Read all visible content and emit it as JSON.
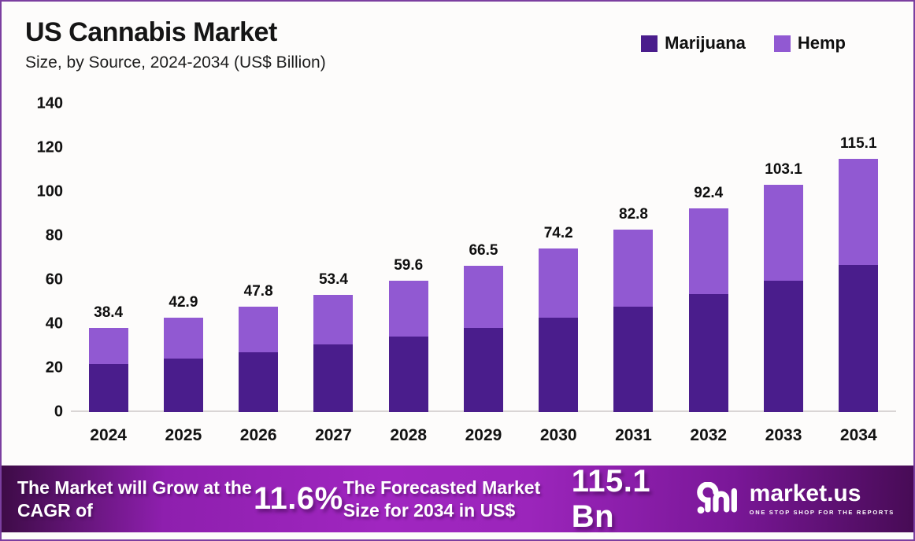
{
  "header": {
    "title": "US Cannabis Market",
    "subtitle": "Size, by Source, 2024-2034 (US$ Billion)"
  },
  "legend": [
    {
      "label": "Marijuana",
      "color": "#4A1D8C"
    },
    {
      "label": "Hemp",
      "color": "#9159D2"
    }
  ],
  "chart_data": {
    "type": "bar",
    "stacked": true,
    "title": "US Cannabis Market",
    "subtitle": "Size, by Source, 2024-2034 (US$ Billion)",
    "unit": "US$ Billion",
    "categories": [
      "2024",
      "2025",
      "2026",
      "2027",
      "2028",
      "2029",
      "2030",
      "2031",
      "2032",
      "2033",
      "2034"
    ],
    "series": [
      {
        "name": "Marijuana",
        "color": "#4A1D8C",
        "values": [
          21.8,
          24.3,
          27.2,
          30.6,
          34.3,
          38.2,
          42.8,
          47.7,
          53.6,
          59.8,
          66.9
        ]
      },
      {
        "name": "Hemp",
        "color": "#9159D2",
        "values": [
          16.6,
          18.6,
          20.6,
          22.8,
          25.3,
          28.3,
          31.4,
          35.1,
          38.8,
          43.3,
          48.2
        ]
      }
    ],
    "totals": [
      38.4,
      42.9,
      47.8,
      53.4,
      59.6,
      66.5,
      74.2,
      82.8,
      92.4,
      103.1,
      115.1
    ],
    "ylim": [
      0,
      140
    ],
    "yticks": [
      0,
      20,
      40,
      60,
      80,
      100,
      120,
      140
    ],
    "grid": false,
    "legend_position": "top-right"
  },
  "footer": {
    "cagr_label": "The Market will Grow at the CAGR of",
    "cagr_value": "11.6%",
    "forecast_label": "The Forecasted Market Size for 2034 in US$",
    "forecast_value": "115.1 Bn",
    "brand": {
      "name": "market.us",
      "tagline": "ONE STOP SHOP FOR THE REPORTS"
    }
  }
}
